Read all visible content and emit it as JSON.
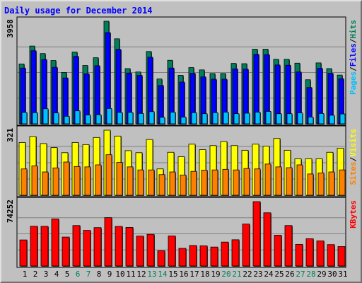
{
  "chart_data": {
    "type": "bar",
    "title": "Daily usage for December 2014",
    "categories": [
      "1",
      "2",
      "3",
      "4",
      "5",
      "6",
      "7",
      "8",
      "9",
      "10",
      "11",
      "12",
      "13",
      "14",
      "15",
      "16",
      "17",
      "18",
      "19",
      "20",
      "21",
      "22",
      "23",
      "24",
      "25",
      "26",
      "27",
      "28",
      "29",
      "30",
      "31"
    ],
    "weekend_days": [
      "6",
      "7",
      "13",
      "14",
      "20",
      "21",
      "27",
      "28"
    ],
    "panels": [
      {
        "name": "hits-files-pages",
        "max_label": "3958",
        "ymax": 3958,
        "legend": [
          "Pages",
          "Files",
          "Hits"
        ],
        "series": [
          {
            "name": "Hits",
            "color": "#00805c",
            "values": [
              2310,
              3000,
              2710,
              2440,
              1980,
              2770,
              2250,
              2550,
              3958,
              3280,
              2130,
              2000,
              2790,
              1730,
              2450,
              1870,
              2170,
              2080,
              1940,
              1940,
              2330,
              2320,
              2880,
              2880,
              2490,
              2490,
              2340,
              1700,
              2350,
              2130,
              1880
            ]
          },
          {
            "name": "Files",
            "color": "#0000ff",
            "values": [
              2150,
              2820,
              2480,
              2180,
              1770,
              2600,
              1930,
              2240,
              3520,
              2870,
              1960,
              1870,
              2570,
              1480,
              2150,
              1610,
              1950,
              1810,
              1720,
              1720,
              2120,
              2110,
              2680,
              2670,
              2270,
              2260,
              2000,
              1400,
              2140,
              1950,
              1740
            ]
          },
          {
            "name": "Pages",
            "color": "#00bfff",
            "values": [
              440,
              430,
              580,
              420,
              290,
              500,
              340,
              350,
              590,
              440,
              440,
              400,
              470,
              250,
              450,
              260,
              430,
              390,
              430,
              450,
              390,
              410,
              450,
              480,
              390,
              390,
              420,
              260,
              400,
              330,
              380
            ]
          }
        ]
      },
      {
        "name": "visits-sites",
        "max_label": "321",
        "ymax": 321,
        "legend": [
          "Sites",
          "Visits"
        ],
        "series": [
          {
            "name": "Visits",
            "color": "#ffff00",
            "values": [
              260,
              290,
              255,
              235,
              210,
              260,
              250,
              285,
              321,
              292,
              220,
              210,
              275,
              130,
              212,
              190,
              252,
              225,
              245,
              265,
              245,
              222,
              252,
              242,
              280,
              222,
              180,
              180,
              180,
              212,
              232
            ]
          },
          {
            "name": "Sites",
            "color": "#ff8000",
            "values": [
              130,
              145,
              115,
              135,
              164,
              142,
              140,
              150,
              200,
              162,
              140,
              125,
              125,
              102,
              115,
              100,
              118,
              124,
              125,
              128,
              125,
              132,
              130,
              154,
              140,
              136,
              150,
              105,
              110,
              115,
              125
            ]
          }
        ]
      },
      {
        "name": "kbytes",
        "max_label": "74252",
        "ymax": 74252,
        "legend": [
          "KBytes"
        ],
        "series": [
          {
            "name": "KBytes",
            "color": "#ff0000",
            "values": [
              30100,
              45900,
              45800,
              54300,
              33400,
              46700,
              41100,
              44300,
              55800,
              45700,
              44500,
              34500,
              36600,
              17600,
              34700,
              20400,
              23700,
              23300,
              21900,
              27600,
              30300,
              48400,
              74252,
              61400,
              35500,
              46700,
              25000,
              31500,
              29000,
              24700,
              22400
            ]
          }
        ]
      }
    ]
  },
  "legend_separator": "/"
}
